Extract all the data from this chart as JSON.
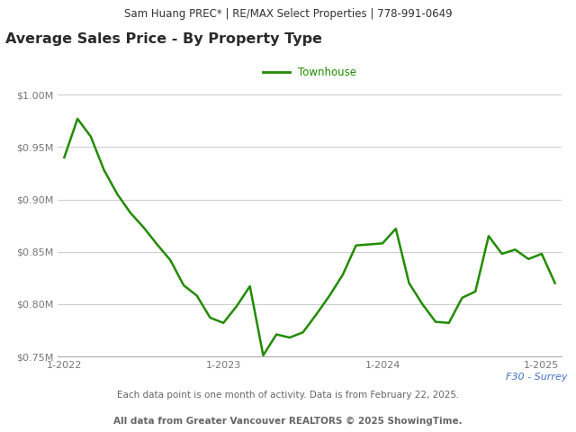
{
  "header_text": "Sam Huang PREC* | RE/MAX Select Properties | 778-991-0649",
  "title": "Average Sales Price - By Property Type",
  "legend_label": "Townhouse",
  "line_color": "#228B00",
  "footer_line1": "F30 - Surrey",
  "footer_line2": "Each data point is one month of activity. Data is from February 22, 2025.",
  "footer_line3": "All data from Greater Vancouver REALTORS © 2025 ShowingTime.",
  "ylim": [
    750000,
    1010000
  ],
  "yticks": [
    750000,
    800000,
    850000,
    900000,
    950000,
    1000000
  ],
  "ytick_labels": [
    "$0.75M",
    "$0.80M",
    "$0.85M",
    "$0.90M",
    "$0.95M",
    "$1.00M"
  ],
  "xtick_positions": [
    0,
    12,
    24,
    36
  ],
  "xtick_labels": [
    "1-2022",
    "1-2023",
    "1-2024",
    "1-2025"
  ],
  "n_points": 38,
  "values": [
    940000,
    977000,
    960000,
    928000,
    905000,
    887000,
    873000,
    857000,
    842000,
    818000,
    808000,
    787000,
    782000,
    798000,
    817000,
    751000,
    771000,
    768000,
    773000,
    790000,
    808000,
    828000,
    856000,
    857000,
    858000,
    872000,
    820000,
    800000,
    783000,
    782000,
    806000,
    812000,
    865000,
    848000,
    852000,
    843000,
    848000,
    820000
  ],
  "background_color": "#ffffff",
  "header_bg_color": "#ebebeb",
  "grid_color": "#cccccc",
  "title_color": "#2a2a2a",
  "header_color": "#333333",
  "footer_color_surrey": "#4472c4",
  "footer_color_note": "#666666"
}
